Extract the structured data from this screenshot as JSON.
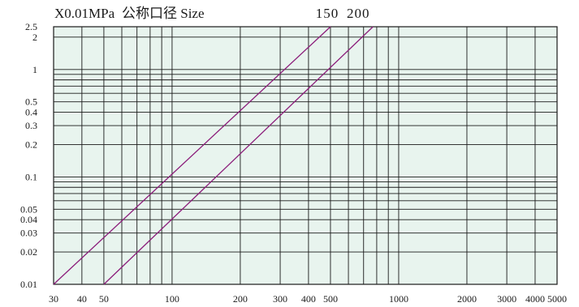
{
  "chart_data": {
    "type": "line",
    "unit_label": "X0.01MPa",
    "legend_caption": "公称口径 Size",
    "xscale": "log",
    "yscale": "log",
    "xlim": [
      30,
      5000
    ],
    "ylim": [
      0.01,
      2.5
    ],
    "grid": true,
    "background_color": "#e8f4ee",
    "grid_color": "#1a1a1a",
    "line_color": "#8b1c7a",
    "x_tick_labels": [
      "30",
      "40",
      "50",
      "100",
      "200",
      "300",
      "400",
      "500",
      "1000",
      "2000",
      "3000",
      "4000",
      "5000"
    ],
    "x_ticks": [
      30,
      40,
      50,
      100,
      200,
      300,
      400,
      500,
      1000,
      2000,
      3000,
      4000,
      5000
    ],
    "y_tick_labels": [
      "2.5",
      "2",
      "1",
      "0.5",
      "0.4",
      "0.3",
      "0.2",
      "0.1",
      "0.05",
      "0.04",
      "0.03",
      "0.02",
      "0.01"
    ],
    "y_ticks": [
      2.5,
      2,
      1,
      0.5,
      0.4,
      0.3,
      0.2,
      0.1,
      0.05,
      0.04,
      0.03,
      0.02,
      0.01
    ],
    "series": [
      {
        "name": "150",
        "x": [
          30,
          500
        ],
        "y": [
          0.01,
          2.5
        ]
      },
      {
        "name": "200",
        "x": [
          50,
          770
        ],
        "y": [
          0.01,
          2.5
        ]
      }
    ]
  }
}
